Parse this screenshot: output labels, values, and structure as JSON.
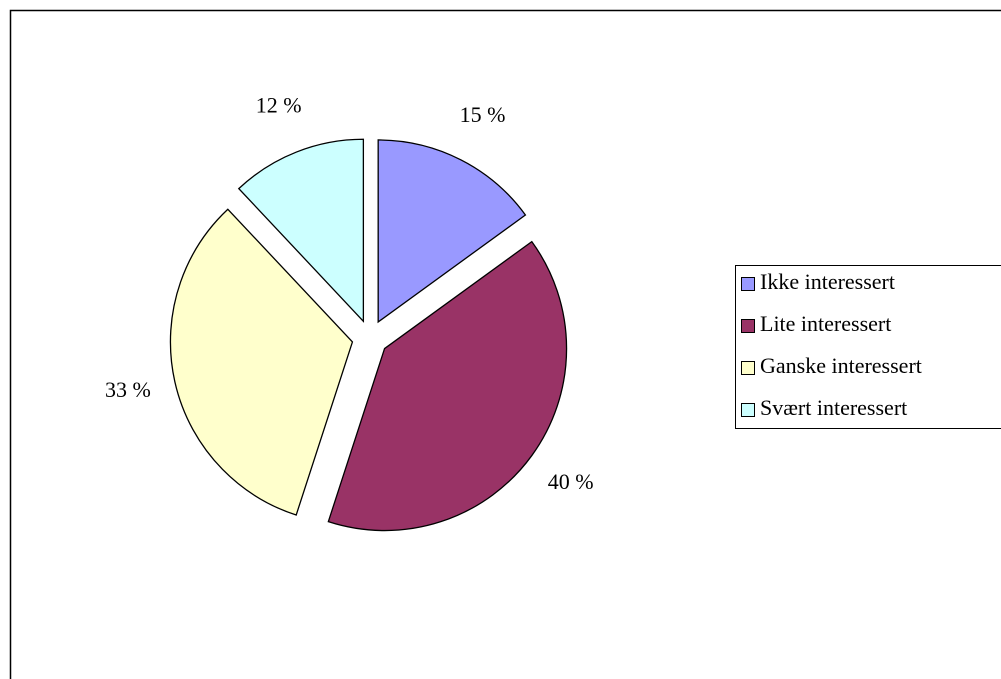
{
  "chart_data": {
    "type": "pie",
    "categories": [
      "Ikke interessert",
      "Lite interessert",
      "Ganske interessert",
      "Svært interessert"
    ],
    "values": [
      15,
      40,
      33,
      12
    ],
    "value_labels": [
      "15 %",
      "40 %",
      "33 %",
      "12 %"
    ],
    "colors": [
      "#9999ff",
      "#993366",
      "#ffffcc",
      "#ccffff"
    ],
    "exploded": true,
    "legend": "right"
  }
}
